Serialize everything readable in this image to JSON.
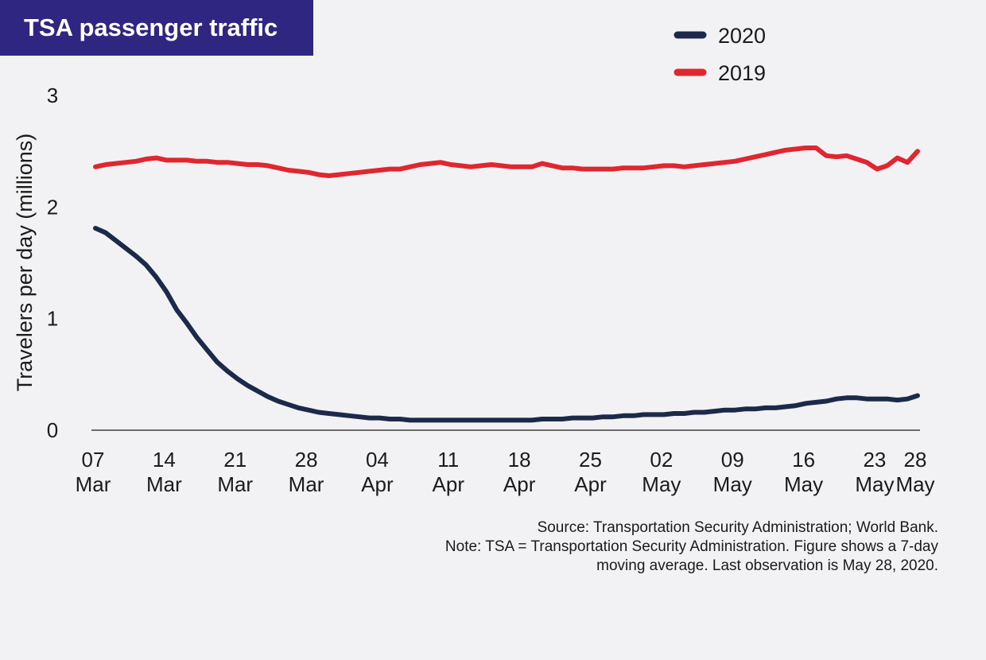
{
  "header": {
    "title": "TSA passenger traffic"
  },
  "colors": {
    "title_bg": "#2e2680",
    "series_2020": "#1c2a4a",
    "series_2019": "#e0262f"
  },
  "notes": {
    "source": "Source: Transportation Security Administration; World Bank.",
    "note_line1": "Note: TSA = Transportation Security Administration. Figure shows a 7-day",
    "note_line2": "moving average. Last observation is May 28, 2020."
  },
  "chart_data": {
    "type": "line",
    "ylabel": "Travelers per day (millions)",
    "xlabel": "",
    "ylim": [
      0,
      3
    ],
    "yticks": [
      "0",
      "1",
      "2",
      "3"
    ],
    "xlim": [
      0,
      82
    ],
    "xticks": [
      {
        "day": "07",
        "month": "Mar"
      },
      {
        "day": "14",
        "month": "Mar"
      },
      {
        "day": "21",
        "month": "Mar"
      },
      {
        "day": "28",
        "month": "Mar"
      },
      {
        "day": "04",
        "month": "Apr"
      },
      {
        "day": "11",
        "month": "Apr"
      },
      {
        "day": "18",
        "month": "Apr"
      },
      {
        "day": "25",
        "month": "Apr"
      },
      {
        "day": "02",
        "month": "May"
      },
      {
        "day": "09",
        "month": "May"
      },
      {
        "day": "16",
        "month": "May"
      },
      {
        "day": "23",
        "month": "May"
      },
      {
        "day": "28",
        "month": "May"
      }
    ],
    "grid": false,
    "legend_position": "top-right",
    "series": [
      {
        "name": "2020",
        "color": "#1c2a4a",
        "points": [
          [
            0,
            1.81
          ],
          [
            1,
            1.77
          ],
          [
            2,
            1.7
          ],
          [
            3,
            1.63
          ],
          [
            4,
            1.56
          ],
          [
            5,
            1.48
          ],
          [
            6,
            1.37
          ],
          [
            7,
            1.24
          ],
          [
            8,
            1.08
          ],
          [
            9,
            0.96
          ],
          [
            10,
            0.83
          ],
          [
            11,
            0.72
          ],
          [
            12,
            0.61
          ],
          [
            13,
            0.53
          ],
          [
            14,
            0.46
          ],
          [
            15,
            0.4
          ],
          [
            16,
            0.35
          ],
          [
            17,
            0.3
          ],
          [
            18,
            0.26
          ],
          [
            19,
            0.23
          ],
          [
            20,
            0.2
          ],
          [
            21,
            0.18
          ],
          [
            22,
            0.16
          ],
          [
            23,
            0.15
          ],
          [
            24,
            0.14
          ],
          [
            25,
            0.13
          ],
          [
            26,
            0.12
          ],
          [
            27,
            0.11
          ],
          [
            28,
            0.11
          ],
          [
            29,
            0.1
          ],
          [
            30,
            0.1
          ],
          [
            31,
            0.09
          ],
          [
            32,
            0.09
          ],
          [
            33,
            0.09
          ],
          [
            34,
            0.09
          ],
          [
            35,
            0.09
          ],
          [
            36,
            0.09
          ],
          [
            37,
            0.09
          ],
          [
            38,
            0.09
          ],
          [
            39,
            0.09
          ],
          [
            40,
            0.09
          ],
          [
            41,
            0.09
          ],
          [
            42,
            0.09
          ],
          [
            43,
            0.09
          ],
          [
            44,
            0.1
          ],
          [
            45,
            0.1
          ],
          [
            46,
            0.1
          ],
          [
            47,
            0.11
          ],
          [
            48,
            0.11
          ],
          [
            49,
            0.11
          ],
          [
            50,
            0.12
          ],
          [
            51,
            0.12
          ],
          [
            52,
            0.13
          ],
          [
            53,
            0.13
          ],
          [
            54,
            0.14
          ],
          [
            55,
            0.14
          ],
          [
            56,
            0.14
          ],
          [
            57,
            0.15
          ],
          [
            58,
            0.15
          ],
          [
            59,
            0.16
          ],
          [
            60,
            0.16
          ],
          [
            61,
            0.17
          ],
          [
            62,
            0.18
          ],
          [
            63,
            0.18
          ],
          [
            64,
            0.19
          ],
          [
            65,
            0.19
          ],
          [
            66,
            0.2
          ],
          [
            67,
            0.2
          ],
          [
            68,
            0.21
          ],
          [
            69,
            0.22
          ],
          [
            70,
            0.24
          ],
          [
            71,
            0.25
          ],
          [
            72,
            0.26
          ],
          [
            73,
            0.28
          ],
          [
            74,
            0.29
          ],
          [
            75,
            0.29
          ],
          [
            76,
            0.28
          ],
          [
            77,
            0.28
          ],
          [
            78,
            0.28
          ],
          [
            79,
            0.27
          ],
          [
            80,
            0.28
          ],
          [
            81,
            0.31
          ]
        ]
      },
      {
        "name": "2019",
        "color": "#e0262f",
        "points": [
          [
            0,
            2.36
          ],
          [
            1,
            2.38
          ],
          [
            2,
            2.39
          ],
          [
            3,
            2.4
          ],
          [
            4,
            2.41
          ],
          [
            5,
            2.43
          ],
          [
            6,
            2.44
          ],
          [
            7,
            2.42
          ],
          [
            8,
            2.42
          ],
          [
            9,
            2.42
          ],
          [
            10,
            2.41
          ],
          [
            11,
            2.41
          ],
          [
            12,
            2.4
          ],
          [
            13,
            2.4
          ],
          [
            14,
            2.39
          ],
          [
            15,
            2.38
          ],
          [
            16,
            2.38
          ],
          [
            17,
            2.37
          ],
          [
            18,
            2.35
          ],
          [
            19,
            2.33
          ],
          [
            20,
            2.32
          ],
          [
            21,
            2.31
          ],
          [
            22,
            2.29
          ],
          [
            23,
            2.28
          ],
          [
            24,
            2.29
          ],
          [
            25,
            2.3
          ],
          [
            26,
            2.31
          ],
          [
            27,
            2.32
          ],
          [
            28,
            2.33
          ],
          [
            29,
            2.34
          ],
          [
            30,
            2.34
          ],
          [
            31,
            2.36
          ],
          [
            32,
            2.38
          ],
          [
            33,
            2.39
          ],
          [
            34,
            2.4
          ],
          [
            35,
            2.38
          ],
          [
            36,
            2.37
          ],
          [
            37,
            2.36
          ],
          [
            38,
            2.37
          ],
          [
            39,
            2.38
          ],
          [
            40,
            2.37
          ],
          [
            41,
            2.36
          ],
          [
            42,
            2.36
          ],
          [
            43,
            2.36
          ],
          [
            44,
            2.39
          ],
          [
            45,
            2.37
          ],
          [
            46,
            2.35
          ],
          [
            47,
            2.35
          ],
          [
            48,
            2.34
          ],
          [
            49,
            2.34
          ],
          [
            50,
            2.34
          ],
          [
            51,
            2.34
          ],
          [
            52,
            2.35
          ],
          [
            53,
            2.35
          ],
          [
            54,
            2.35
          ],
          [
            55,
            2.36
          ],
          [
            56,
            2.37
          ],
          [
            57,
            2.37
          ],
          [
            58,
            2.36
          ],
          [
            59,
            2.37
          ],
          [
            60,
            2.38
          ],
          [
            61,
            2.39
          ],
          [
            62,
            2.4
          ],
          [
            63,
            2.41
          ],
          [
            64,
            2.43
          ],
          [
            65,
            2.45
          ],
          [
            66,
            2.47
          ],
          [
            67,
            2.49
          ],
          [
            68,
            2.51
          ],
          [
            69,
            2.52
          ],
          [
            70,
            2.53
          ],
          [
            71,
            2.53
          ],
          [
            72,
            2.46
          ],
          [
            73,
            2.45
          ],
          [
            74,
            2.46
          ],
          [
            75,
            2.43
          ],
          [
            76,
            2.4
          ],
          [
            77,
            2.34
          ],
          [
            78,
            2.37
          ],
          [
            79,
            2.44
          ],
          [
            80,
            2.4
          ],
          [
            81,
            2.5
          ]
        ]
      }
    ]
  }
}
